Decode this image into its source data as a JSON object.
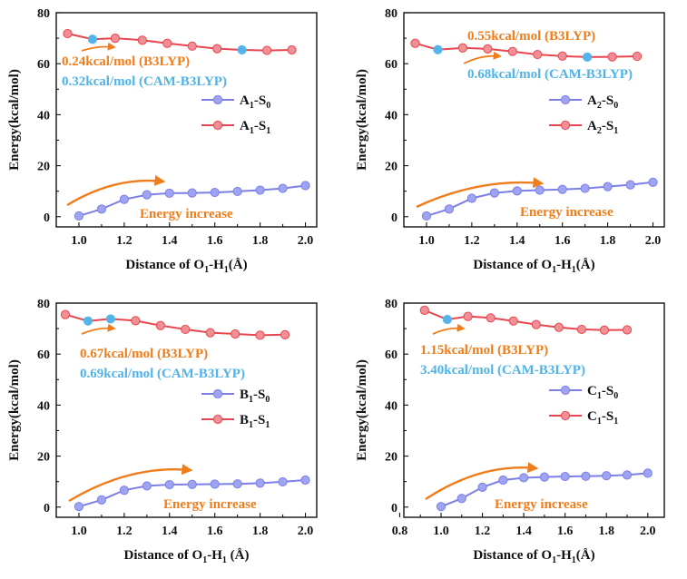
{
  "colors": {
    "s0": "#7b7fe6",
    "s0_marker": "#9ea3f2",
    "s1": "#e8464f",
    "s1_marker": "#f08f96",
    "highlight": "#55b5ea",
    "arrow": "#f07d1a",
    "annotation_orange": "#f07d1a",
    "annotation_blue": "#4fb3e8"
  },
  "chart_data": [
    {
      "type": "line",
      "title": "",
      "xlabel_pre": "Distance of O",
      "xlabel_sub1": "1",
      "xlabel_mid": "-H",
      "xlabel_sub2": "1",
      "xlabel_post": "(Å)",
      "ylabel": "Energy(kcal/mol)",
      "xlim": [
        0.9,
        2.05
      ],
      "ylim": [
        -4,
        80
      ],
      "xticks": [
        "1.0",
        "1.2",
        "1.4",
        "1.6",
        "1.8",
        "2.0"
      ],
      "yticks": [
        "0",
        "20",
        "40",
        "60",
        "80"
      ],
      "legend_position": "right",
      "series": [
        {
          "name": "A1-S0",
          "name_base": "A",
          "name_sub1": "1",
          "name_mid": "-S",
          "name_sub2": "0",
          "x": [
            1.0,
            1.1,
            1.2,
            1.3,
            1.4,
            1.5,
            1.6,
            1.7,
            1.8,
            1.9,
            2.0
          ],
          "y": [
            0.3,
            3.0,
            6.8,
            8.6,
            9.2,
            9.3,
            9.5,
            9.9,
            10.4,
            11.1,
            12.2
          ]
        },
        {
          "name": "A1-S1",
          "name_base": "A",
          "name_sub1": "1",
          "name_mid": "-S",
          "name_sub2": "1",
          "x": [
            0.95,
            1.06,
            1.16,
            1.28,
            1.39,
            1.5,
            1.61,
            1.72,
            1.83,
            1.94
          ],
          "y": [
            71.8,
            69.6,
            70.0,
            69.2,
            68.0,
            66.9,
            65.9,
            65.4,
            65.2,
            65.4
          ],
          "highlight_index": [
            1,
            7
          ]
        }
      ],
      "annotations": {
        "b3lyp": "0.24kcal/mol (B3LYP)",
        "cam": "0.32kcal/mol (CAM-B3LYP)",
        "increase": "Energy increase"
      }
    },
    {
      "type": "line",
      "title": "",
      "xlabel_pre": "Distance of O",
      "xlabel_sub1": "1",
      "xlabel_mid": "-H",
      "xlabel_sub2": "1",
      "xlabel_post": "(Å)",
      "ylabel": "Energy(kcal/mol)",
      "xlim": [
        0.9,
        2.05
      ],
      "ylim": [
        -4,
        80
      ],
      "xticks": [
        "1.0",
        "1.2",
        "1.4",
        "1.6",
        "1.8",
        "2.0"
      ],
      "yticks": [
        "0",
        "20",
        "40",
        "60",
        "80"
      ],
      "legend_position": "right",
      "series": [
        {
          "name": "A2-S0",
          "name_base": "A",
          "name_sub1": "2",
          "name_mid": "-S",
          "name_sub2": "0",
          "x": [
            1.0,
            1.1,
            1.2,
            1.3,
            1.4,
            1.5,
            1.6,
            1.7,
            1.8,
            1.9,
            2.0
          ],
          "y": [
            0.3,
            3.0,
            7.2,
            9.3,
            10.1,
            10.4,
            10.7,
            11.1,
            11.8,
            12.5,
            13.5
          ]
        },
        {
          "name": "A2-S1",
          "name_base": "A",
          "name_sub1": "2",
          "name_mid": "-S",
          "name_sub2": "1",
          "x": [
            0.95,
            1.05,
            1.16,
            1.27,
            1.38,
            1.49,
            1.6,
            1.71,
            1.82,
            1.93
          ],
          "y": [
            68.0,
            65.5,
            66.2,
            65.8,
            64.8,
            63.6,
            63.0,
            62.6,
            62.7,
            62.9
          ],
          "highlight_index": [
            1,
            7
          ]
        }
      ],
      "annotations": {
        "b3lyp": "0.55kcal/mol (B3LYP)",
        "cam": "0.68kcal/mol (CAM-B3LYP)",
        "increase": "Energy increase"
      }
    },
    {
      "type": "line",
      "title": "",
      "xlabel_pre": "Distance of O",
      "xlabel_sub1": "1",
      "xlabel_mid": "-H",
      "xlabel_sub2": "1",
      "xlabel_post": " (Å)",
      "ylabel": "Energy(kcal/mol)",
      "xlim": [
        0.9,
        2.05
      ],
      "ylim": [
        -4,
        80
      ],
      "xticks": [
        "1.0",
        "1.2",
        "1.4",
        "1.6",
        "1.8",
        "2.0"
      ],
      "yticks": [
        "0",
        "20",
        "40",
        "60",
        "80"
      ],
      "legend_position": "right",
      "series": [
        {
          "name": "B1-S0",
          "name_base": "B",
          "name_sub1": "1",
          "name_mid": "-S",
          "name_sub2": "0",
          "x": [
            1.0,
            1.1,
            1.2,
            1.3,
            1.4,
            1.5,
            1.6,
            1.7,
            1.8,
            1.9,
            2.0
          ],
          "y": [
            0.2,
            2.8,
            6.6,
            8.3,
            8.8,
            8.9,
            9.0,
            9.1,
            9.4,
            9.9,
            10.6
          ]
        },
        {
          "name": "B1-S1",
          "name_base": "B",
          "name_sub1": "1",
          "name_mid": "-S",
          "name_sub2": "1",
          "x": [
            0.94,
            1.04,
            1.14,
            1.25,
            1.36,
            1.47,
            1.58,
            1.69,
            1.8,
            1.91
          ],
          "y": [
            75.5,
            73.0,
            73.8,
            73.1,
            71.2,
            69.7,
            68.4,
            67.9,
            67.4,
            67.6
          ],
          "highlight_index": [
            1,
            2
          ]
        }
      ],
      "annotations": {
        "b3lyp": "0.67kcal/mol (B3LYP)",
        "cam": "0.69kcal/mol (CAM-B3LYP)",
        "increase": "Energy increase"
      }
    },
    {
      "type": "line",
      "title": "",
      "xlabel_pre": "Distance of O",
      "xlabel_sub1": "1",
      "xlabel_mid": "-H",
      "xlabel_sub2": "1",
      "xlabel_post": "(Å)",
      "ylabel": "Energy(kcal/mol)",
      "xlim": [
        0.82,
        2.08
      ],
      "ylim": [
        -4,
        80
      ],
      "xticks": [
        "0.8",
        "1.0",
        "1.2",
        "1.4",
        "1.6",
        "1.8",
        "2.0"
      ],
      "yticks": [
        "0",
        "20",
        "40",
        "60",
        "80"
      ],
      "legend_position": "right",
      "series": [
        {
          "name": "C1-S0",
          "name_base": "C",
          "name_sub1": "1",
          "name_mid": "-S",
          "name_sub2": "0",
          "x": [
            1.0,
            1.1,
            1.2,
            1.3,
            1.4,
            1.5,
            1.6,
            1.7,
            1.8,
            1.9,
            2.0
          ],
          "y": [
            0.2,
            3.4,
            7.8,
            10.6,
            11.5,
            11.8,
            12.0,
            12.1,
            12.3,
            12.6,
            13.3
          ]
        },
        {
          "name": "C1-S1",
          "name_base": "C",
          "name_sub1": "1",
          "name_mid": "-S",
          "name_sub2": "1",
          "x": [
            0.92,
            1.03,
            1.13,
            1.24,
            1.35,
            1.46,
            1.57,
            1.68,
            1.79,
            1.9
          ],
          "y": [
            77.2,
            73.6,
            74.8,
            74.2,
            73.0,
            71.6,
            70.5,
            69.7,
            69.4,
            69.5
          ],
          "highlight_index": [
            1
          ]
        }
      ],
      "annotations": {
        "b3lyp": "1.15kcal/mol (B3LYP)",
        "cam": "3.40kcal/mol (CAM-B3LYP)",
        "increase": "Energy increase"
      }
    }
  ]
}
